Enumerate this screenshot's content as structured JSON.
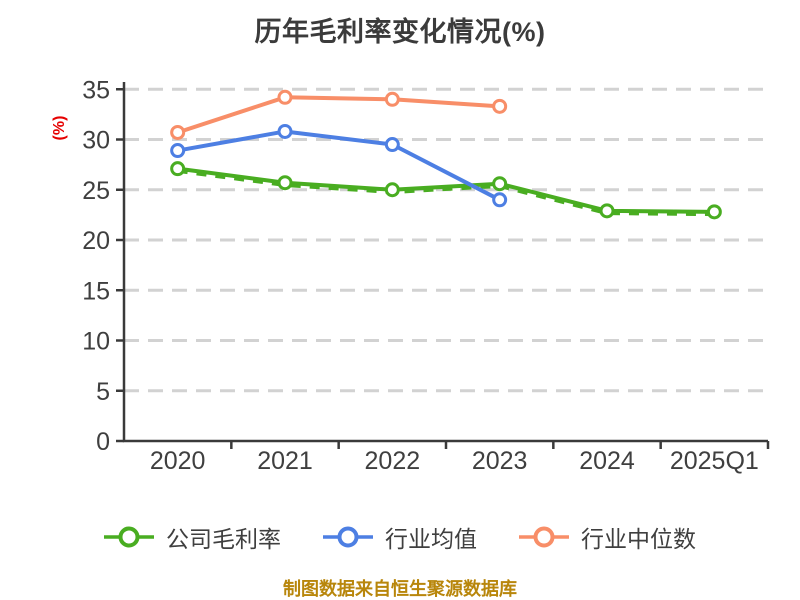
{
  "footer": "制图数据来自恒生聚源数据库",
  "colors": {
    "axis": "#3a3a3a",
    "grid": "#d2d2d2",
    "tick_label": "#3f3f3f",
    "title": "#3b3b3b",
    "ylabel": "#e60000",
    "footer": "#b8860b",
    "marker_fill": "#ffffff"
  },
  "chart_data": {
    "type": "line",
    "title": "历年毛利率变化情况(%)",
    "ylabel": "(%)",
    "xlabel": "",
    "categories": [
      "2020",
      "2021",
      "2022",
      "2023",
      "2024",
      "2025Q1"
    ],
    "series": [
      {
        "name": "公司毛利率",
        "color": "#49ad21",
        "style": "solid-with-dashed-overlay",
        "values": [
          27.1,
          25.7,
          25.0,
          25.6,
          22.9,
          22.8
        ]
      },
      {
        "name": "行业均值",
        "color": "#4d7fe3",
        "style": "solid",
        "values": [
          28.9,
          30.8,
          29.5,
          24.0,
          null,
          null
        ]
      },
      {
        "name": "行业中位数",
        "color": "#f88e68",
        "style": "solid",
        "values": [
          30.7,
          34.2,
          34.0,
          33.3,
          null,
          null
        ]
      }
    ],
    "ylim": [
      0,
      35
    ],
    "ytick_step": 5,
    "grid": "horizontal-dashed",
    "legend_position": "bottom"
  }
}
